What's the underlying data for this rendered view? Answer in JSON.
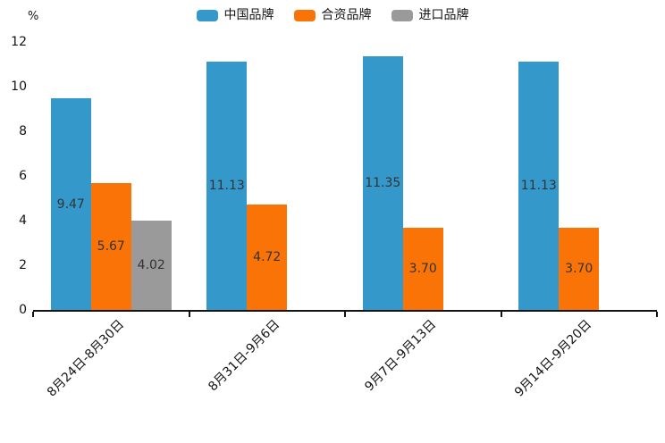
{
  "chart_data": {
    "type": "bar",
    "title": "",
    "xlabel": "",
    "ylabel": "%",
    "ylim": [
      0,
      12
    ],
    "yticks": [
      0,
      2,
      4,
      6,
      8,
      10,
      12
    ],
    "grid": false,
    "legend_position": "top",
    "value_labels": "inside-center, 2 decimals",
    "categories": [
      "8月24日-8月30日",
      "8月31日-9月6日",
      "9月7日-9月13日",
      "9月14日-9月20日"
    ],
    "series": [
      {
        "name": "中国品牌",
        "color": "#3498cb",
        "values": [
          9.47,
          11.13,
          11.35,
          11.13
        ]
      },
      {
        "name": "合资品牌",
        "color": "#fa7306",
        "values": [
          5.67,
          4.72,
          3.7,
          3.7
        ]
      },
      {
        "name": "进口品牌",
        "color": "#9a9a9a",
        "values": [
          4.02,
          null,
          null,
          null
        ]
      }
    ],
    "axis_color": "#141414",
    "value_label_color": "#333333",
    "x_tick_rotation_deg": 45
  }
}
